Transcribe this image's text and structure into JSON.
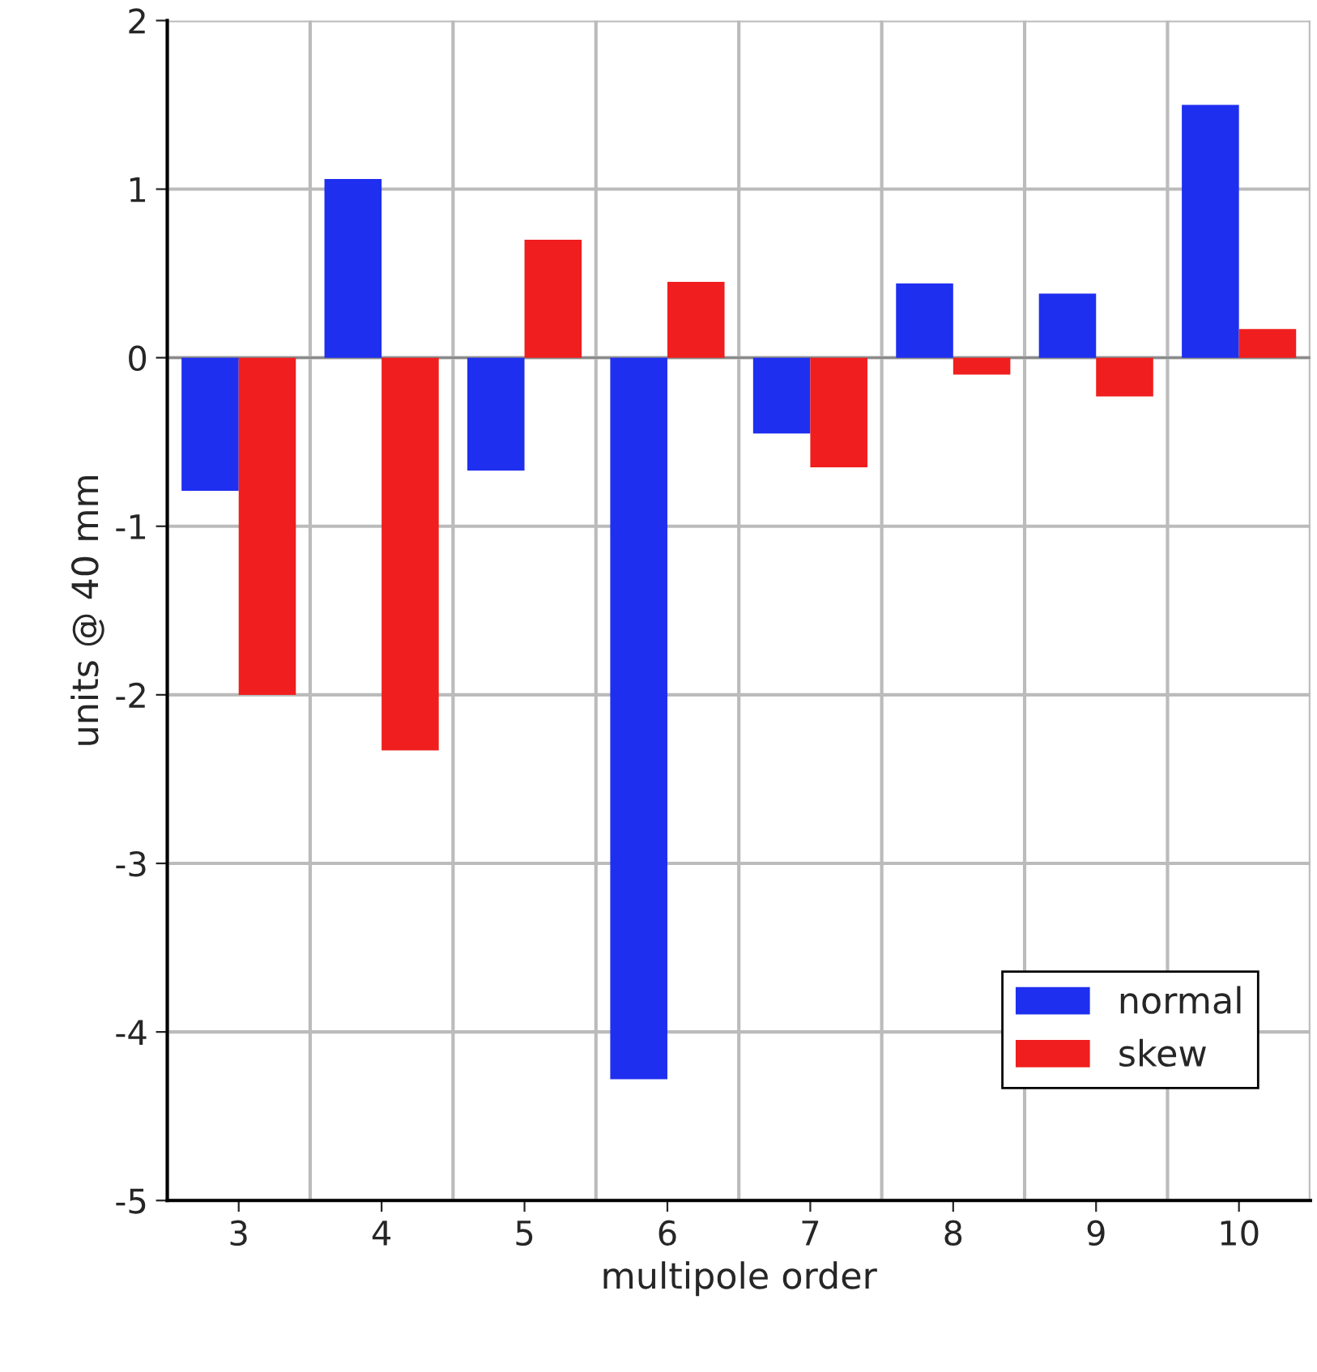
{
  "chart_data": {
    "type": "bar",
    "xlabel": "multipole order",
    "ylabel": "units @ 40 mm",
    "categories": [
      "3",
      "4",
      "5",
      "6",
      "7",
      "8",
      "9",
      "10"
    ],
    "series": [
      {
        "name": "normal",
        "color": "#1f2ff0",
        "values": [
          -0.79,
          1.06,
          -0.67,
          -4.28,
          -0.45,
          0.44,
          0.38,
          1.5
        ]
      },
      {
        "name": "skew",
        "color": "#f01e1e",
        "values": [
          -2.0,
          -2.33,
          0.7,
          0.45,
          -0.65,
          -0.1,
          -0.23,
          0.17
        ]
      }
    ],
    "ylim": [
      -5,
      2
    ],
    "yticks": [
      -5,
      -4,
      -3,
      -2,
      -1,
      0,
      1,
      2
    ],
    "grid": true,
    "legend": "bottom right"
  }
}
